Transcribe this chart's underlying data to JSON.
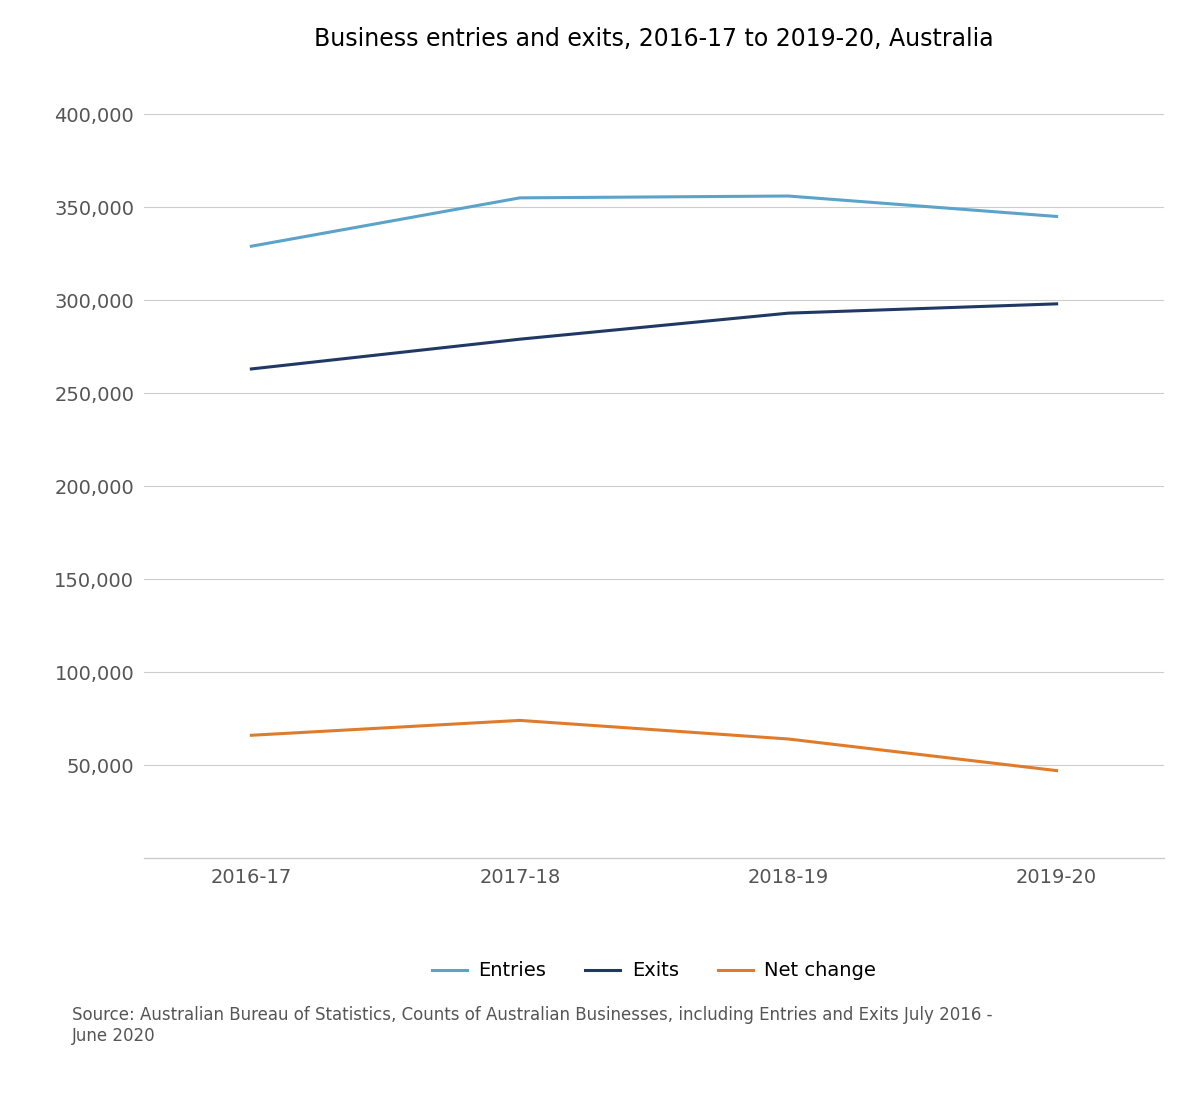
{
  "title": "Business entries and exits, 2016-17 to 2019-20, Australia",
  "x_labels": [
    "2016-17",
    "2017-18",
    "2018-19",
    "2019-20"
  ],
  "entries": [
    329000,
    355000,
    356000,
    345000
  ],
  "exits": [
    263000,
    279000,
    293000,
    298000
  ],
  "net_change": [
    66000,
    74000,
    64000,
    47000
  ],
  "entries_color": "#5ba3c9",
  "exits_color": "#1f3864",
  "net_change_color": "#e07b2a",
  "line_width": 2.2,
  "ylim": [
    0,
    420000
  ],
  "yticks": [
    50000,
    100000,
    150000,
    200000,
    250000,
    300000,
    350000,
    400000
  ],
  "legend_labels": [
    "Entries",
    "Exits",
    "Net change"
  ],
  "source_text": "Source: Australian Bureau of Statistics, Counts of Australian Businesses, including Entries and Exits July 2016 -\nJune 2020",
  "background_color": "#ffffff",
  "grid_color": "#cccccc",
  "title_fontsize": 17,
  "axis_fontsize": 14,
  "legend_fontsize": 14,
  "source_fontsize": 12
}
